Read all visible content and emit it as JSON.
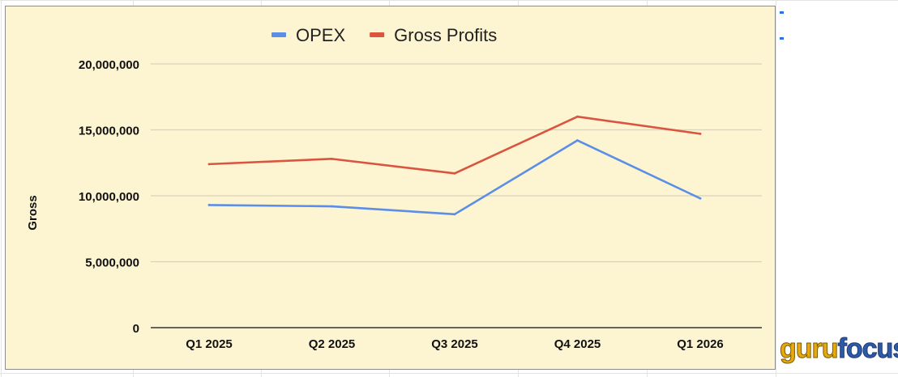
{
  "chart_data": {
    "type": "line",
    "title": "",
    "xlabel": "",
    "ylabel": "Gross",
    "categories": [
      "Q1 2025",
      "Q2 2025",
      "Q3 2025",
      "Q4 2025",
      "Q1 2026"
    ],
    "series": [
      {
        "name": "OPEX",
        "color": "#5b8ee6",
        "values": [
          9300000,
          9200000,
          8600000,
          14200000,
          9800000
        ]
      },
      {
        "name": "Gross Profits",
        "color": "#d9553f",
        "values": [
          12400000,
          12800000,
          11700000,
          16000000,
          14700000
        ]
      }
    ],
    "ylim": [
      0,
      20000000
    ],
    "yticks": [
      0,
      5000000,
      10000000,
      15000000,
      20000000
    ],
    "ytick_labels": [
      "0",
      "5,000,000",
      "10,000,000",
      "15,000,000",
      "20,000,000"
    ],
    "grid": true,
    "legend_position": "top-center",
    "background": "#fdf4d2"
  },
  "watermark": {
    "part1": "guru",
    "part2": "focus"
  }
}
